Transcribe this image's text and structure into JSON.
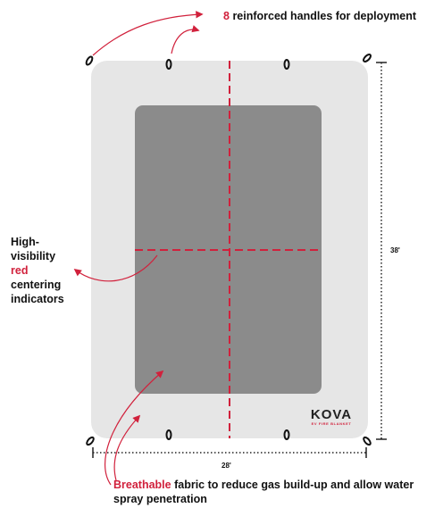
{
  "handles_note": {
    "count": "8",
    "text": "reinforced handles for deployment"
  },
  "centering_note": {
    "line1": "High-",
    "line2": "visibility",
    "highlight": "red",
    "line4": "centering",
    "line5": "indicators"
  },
  "fabric_note": {
    "highlight": "Breathable",
    "text": "fabric to reduce gas build-up and allow water spray penetration"
  },
  "dimensions": {
    "height": "38'",
    "width": "28'"
  },
  "logo": {
    "word": "KOVA",
    "tagline": "EV FIRE BLANKET"
  },
  "colors": {
    "accent": "#d1213c",
    "blanket": "#e5e5e5",
    "panel": "#8b8b8b"
  }
}
